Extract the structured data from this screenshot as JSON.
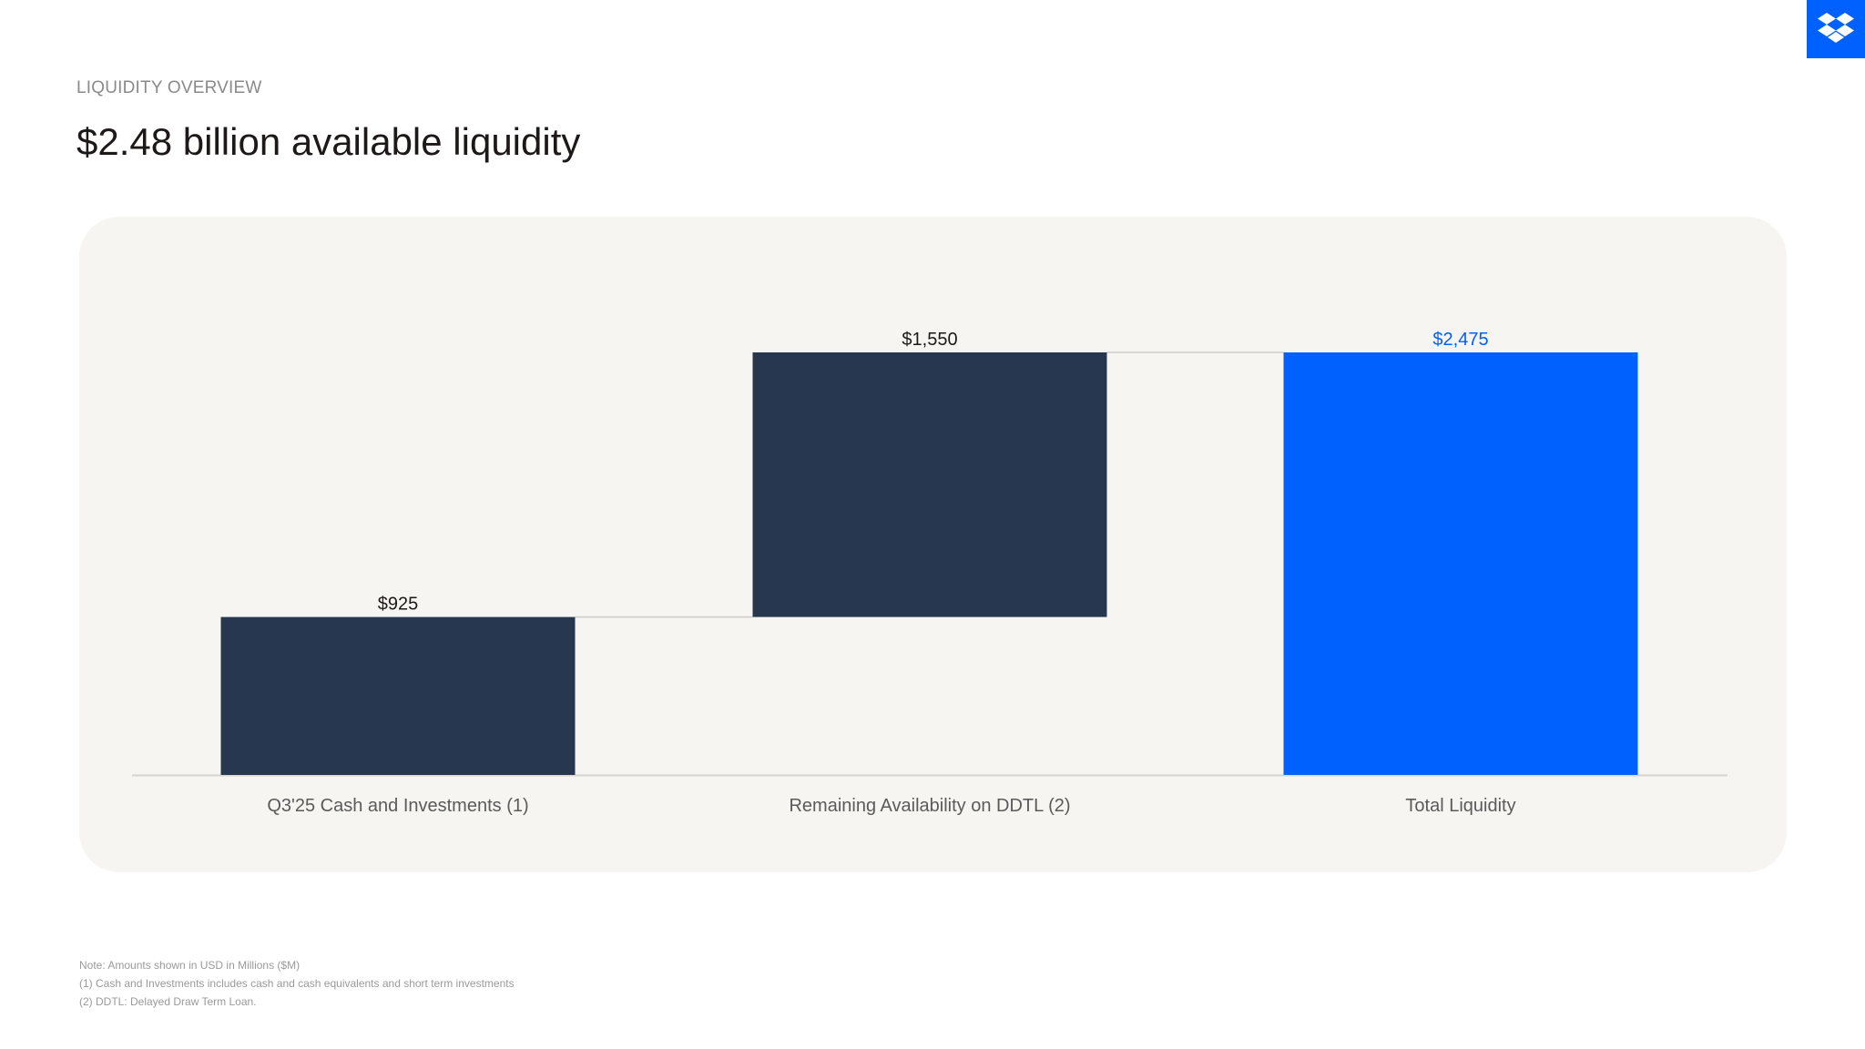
{
  "header": {
    "eyebrow": "LIQUIDITY OVERVIEW",
    "title": "$2.48 billion available liquidity"
  },
  "brand": {
    "logo_icon": "dropbox-logo-icon",
    "accent_color": "#0061fe",
    "dark_bar_color": "#283750"
  },
  "footnotes": [
    "Note: Amounts shown in USD in Millions ($M)",
    "(1) Cash and Investments includes cash and cash equivalents and short term investments",
    "(2) DDTL: Delayed Draw Term Loan."
  ],
  "chart_data": {
    "type": "bar",
    "subtype": "waterfall",
    "categories": [
      "Q3'25 Cash and Investments (1)",
      "Remaining Availability on DDTL (2)",
      "Total Liquidity"
    ],
    "values": [
      925,
      1550,
      2475
    ],
    "data_labels": [
      "$925",
      "$1,550",
      "$2,475"
    ],
    "bases": [
      0,
      925,
      0
    ],
    "colors": [
      "#283750",
      "#283750",
      "#0061fe"
    ],
    "label_colors": [
      "#1e1919",
      "#1e1919",
      "#0061fe"
    ],
    "ylim": [
      0,
      2475
    ],
    "grid": false,
    "legend": "none",
    "connectors": true
  }
}
